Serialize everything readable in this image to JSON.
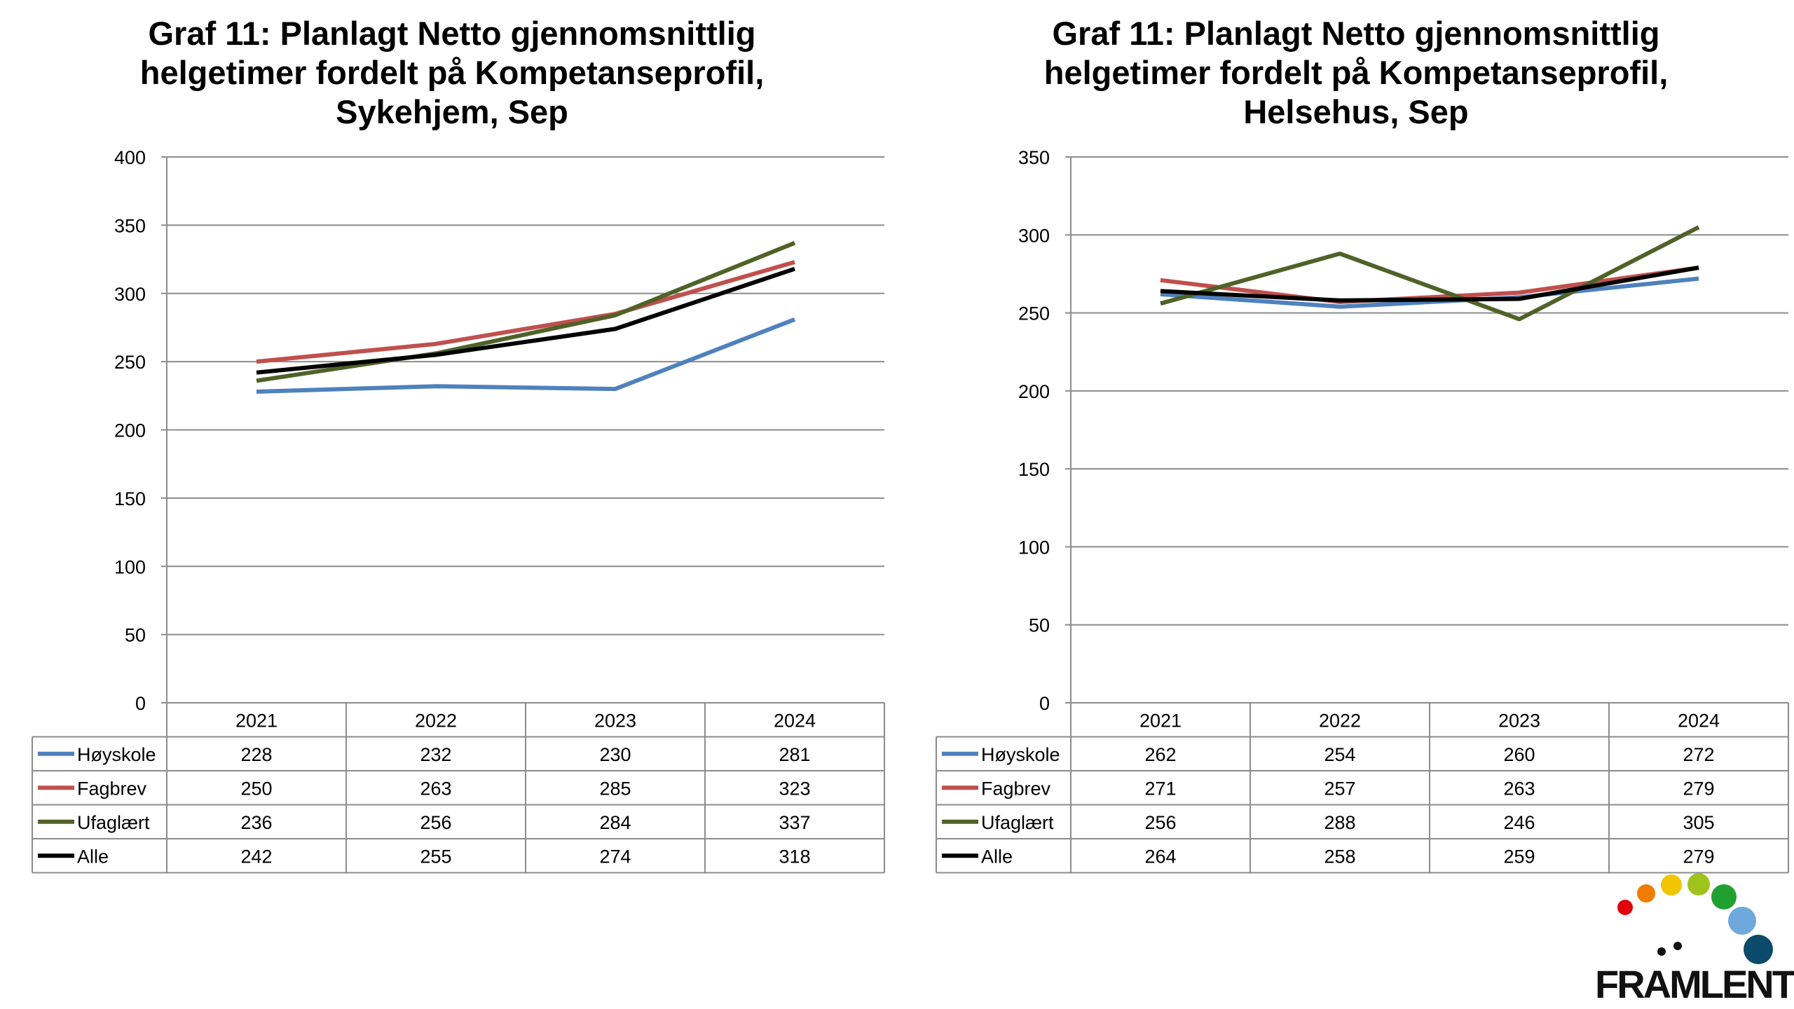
{
  "chart_data": [
    {
      "type": "line",
      "title_lines": [
        "Graf 11: Planlagt Netto gjennomsnittlig",
        "helgetimer fordelt på Kompetanseprofil,",
        "Sykehjem, Sep"
      ],
      "categories": [
        "2021",
        "2022",
        "2023",
        "2024"
      ],
      "ylim": [
        0,
        400
      ],
      "yticks": [
        0,
        50,
        100,
        150,
        200,
        250,
        300,
        350,
        400
      ],
      "grid": true,
      "legend": "data-table",
      "series": [
        {
          "name": "Høyskole",
          "color": "#4f81bd",
          "values": [
            228,
            232,
            230,
            281
          ]
        },
        {
          "name": "Fagbrev",
          "color": "#c0504d",
          "values": [
            250,
            263,
            285,
            323
          ]
        },
        {
          "name": "Ufaglært",
          "color": "#4f6228",
          "values": [
            236,
            256,
            284,
            337
          ]
        },
        {
          "name": "Alle",
          "color": "#000000",
          "values": [
            242,
            255,
            274,
            318
          ]
        }
      ]
    },
    {
      "type": "line",
      "title_lines": [
        "Graf 11: Planlagt Netto gjennomsnittlig",
        "helgetimer fordelt på Kompetanseprofil,",
        "Helsehus, Sep"
      ],
      "categories": [
        "2021",
        "2022",
        "2023",
        "2024"
      ],
      "ylim": [
        0,
        350
      ],
      "yticks": [
        0,
        50,
        100,
        150,
        200,
        250,
        300,
        350
      ],
      "grid": true,
      "legend": "data-table",
      "series": [
        {
          "name": "Høyskole",
          "color": "#4f81bd",
          "values": [
            262,
            254,
            260,
            272
          ]
        },
        {
          "name": "Fagbrev",
          "color": "#c0504d",
          "values": [
            271,
            257,
            263,
            279
          ]
        },
        {
          "name": "Ufaglært",
          "color": "#4f6228",
          "values": [
            256,
            288,
            246,
            305
          ]
        },
        {
          "name": "Alle",
          "color": "#000000",
          "values": [
            264,
            258,
            259,
            279
          ]
        }
      ]
    }
  ],
  "logo": {
    "text": "FRAMLENT",
    "dot_colors": [
      "#e0000b",
      "#f07d00",
      "#f2c500",
      "#9fc31d",
      "#20a030",
      "#6fa8dc",
      "#0b4a6b"
    ]
  }
}
